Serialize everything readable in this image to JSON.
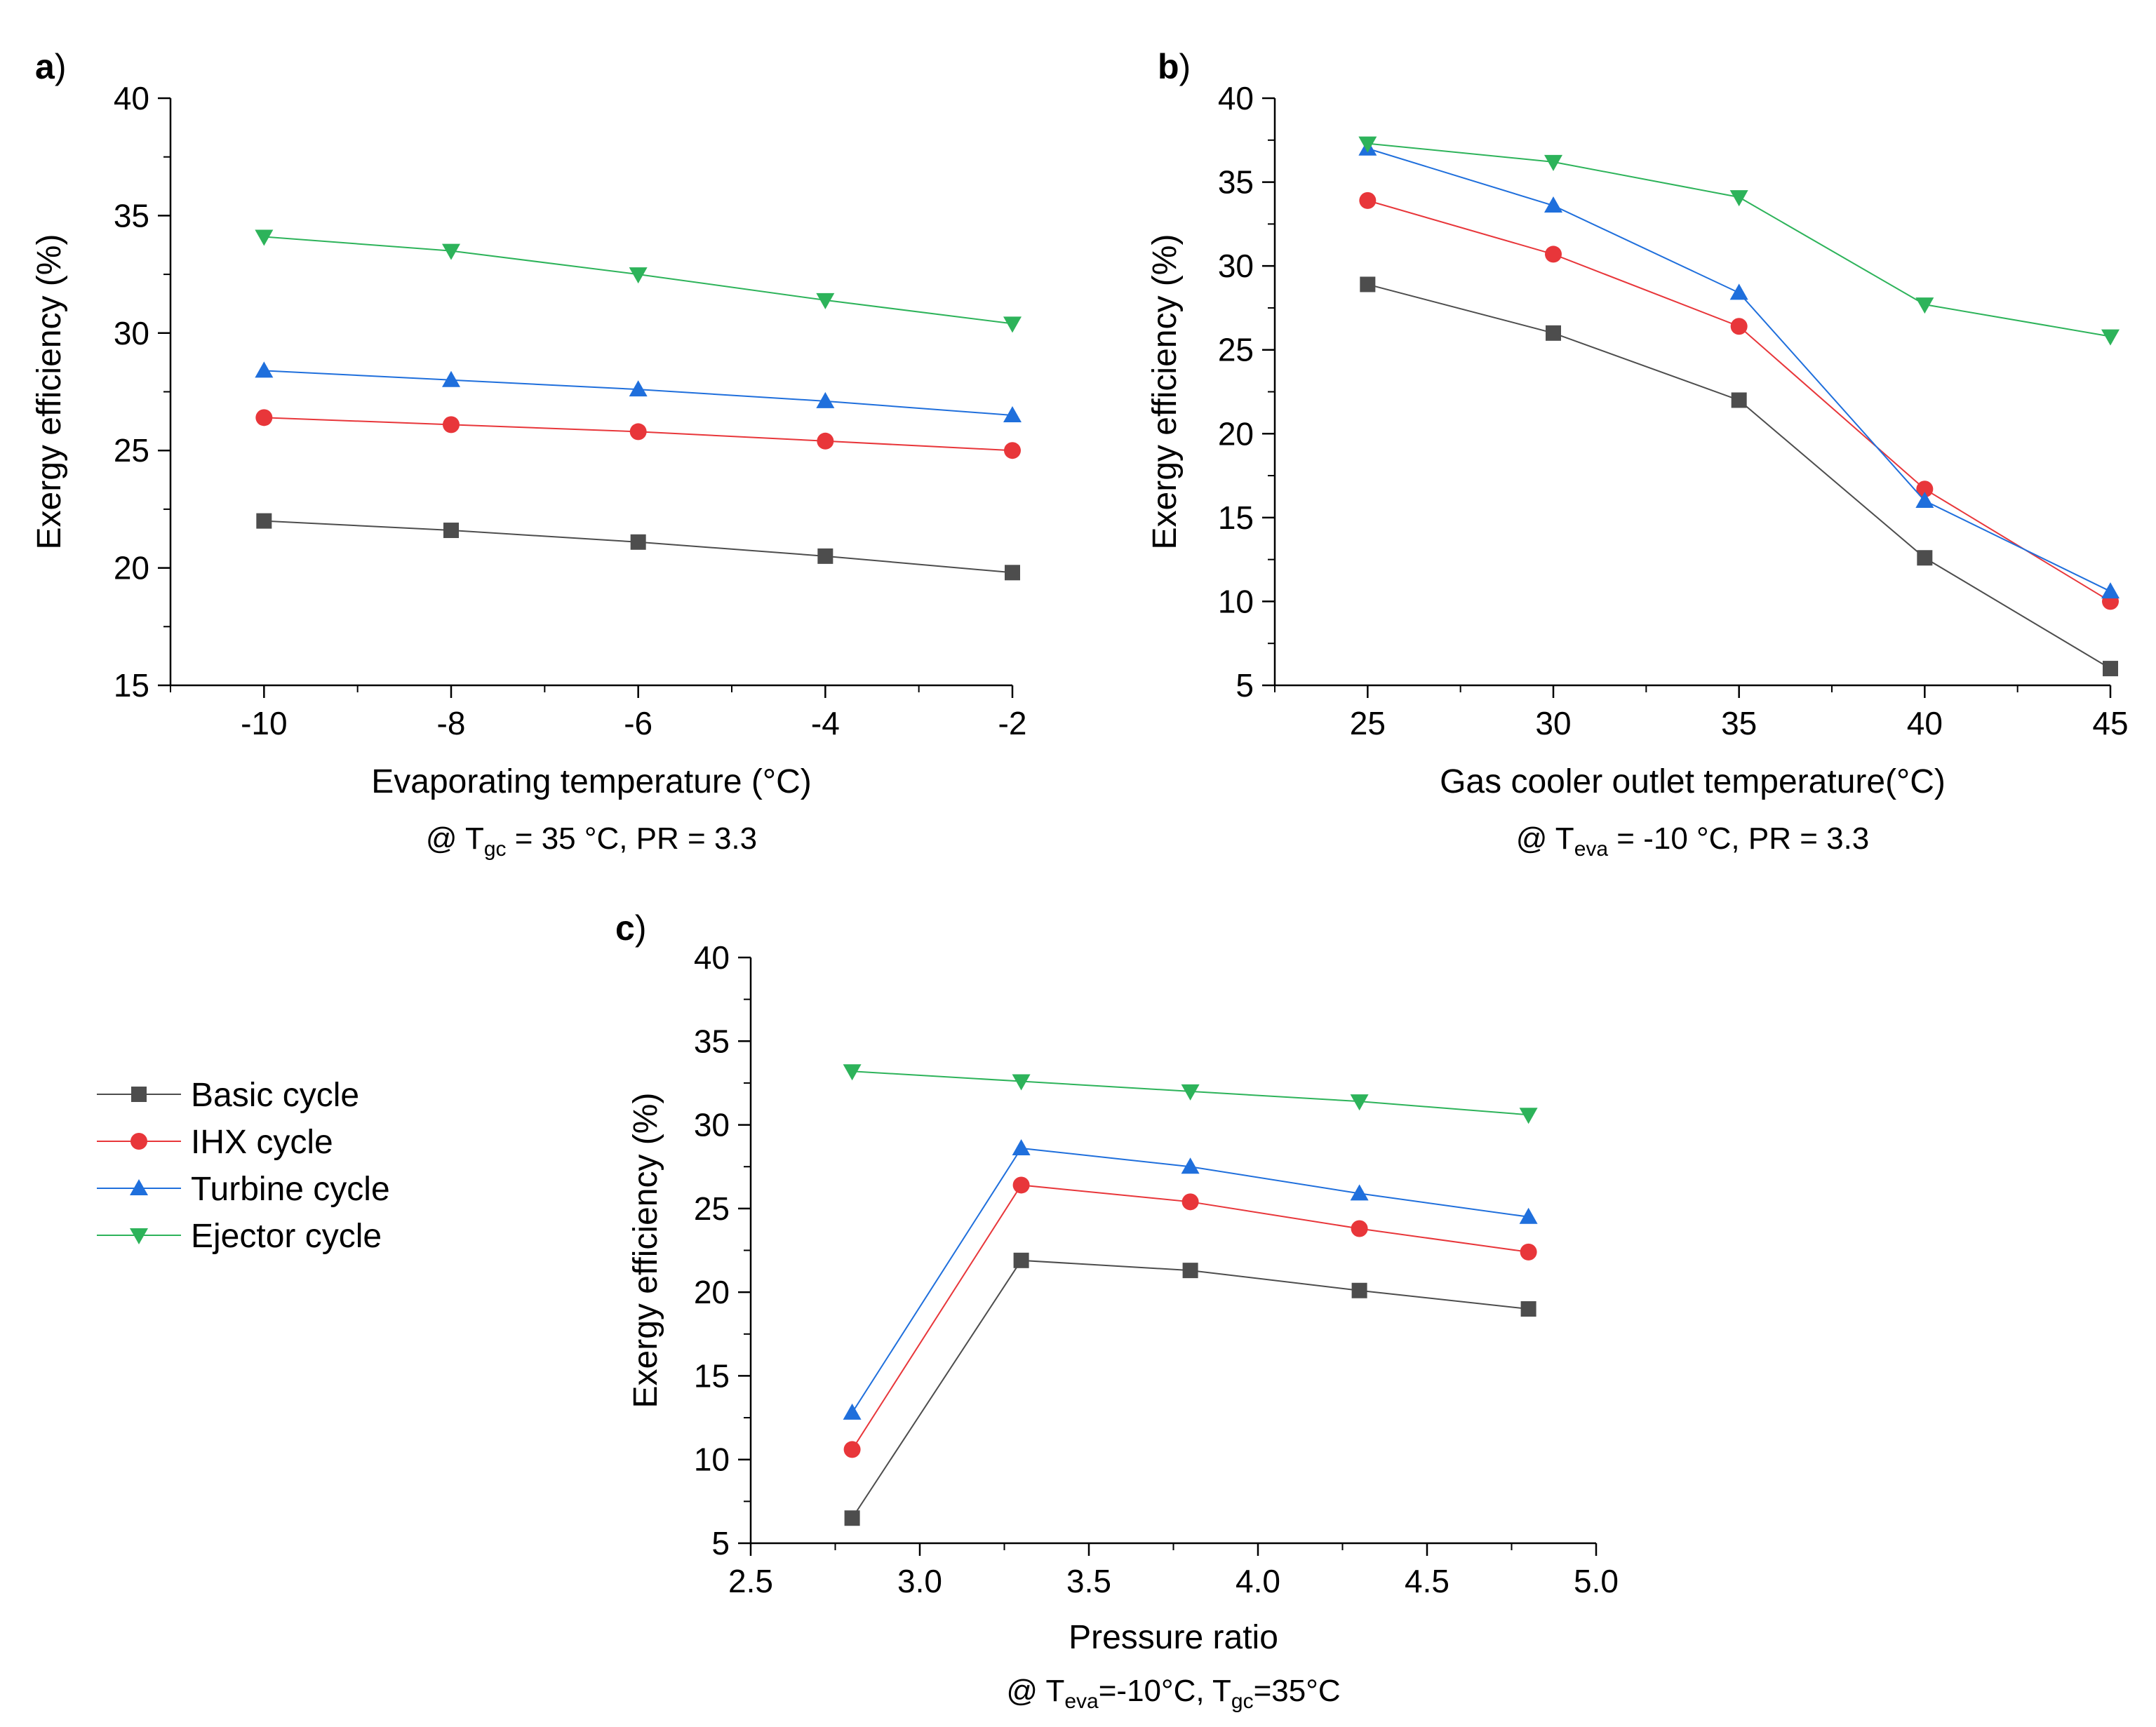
{
  "legend": {
    "entries": [
      {
        "name": "Basic cycle",
        "color": "#4d4d4d",
        "marker": "square"
      },
      {
        "name": "IHX cycle",
        "color": "#e8363a",
        "marker": "circle"
      },
      {
        "name": "Turbine cycle",
        "color": "#1f6fdc",
        "marker": "triangle-up"
      },
      {
        "name": "Ejector cycle",
        "color": "#2db35a",
        "marker": "triangle-down"
      }
    ]
  },
  "chart_data": [
    {
      "panel": "a",
      "panel_letter": "a",
      "type": "line",
      "title": "",
      "xlabel": "Evaporating temperature (°C)",
      "ylabel": "Exergy efficiency (%)",
      "condition": {
        "prefix": "@ T",
        "sub": "gc",
        "rest": " = 35 °C, PR = 3.3"
      },
      "xlim": [
        -11,
        -2
      ],
      "ylim": [
        15,
        40
      ],
      "xticks": [
        -10,
        -8,
        -6,
        -4,
        -2
      ],
      "xtick_labels": [
        "-10",
        "-8",
        "-6",
        "-4",
        "-2"
      ],
      "yticks": [
        15,
        20,
        25,
        30,
        35,
        40
      ],
      "ytick_labels": [
        "15",
        "20",
        "25",
        "30",
        "35",
        "40"
      ],
      "x": [
        -10,
        -8,
        -6,
        -4,
        -2
      ],
      "series": [
        {
          "name": "Basic cycle",
          "values": [
            22.0,
            21.6,
            21.1,
            20.5,
            19.8
          ]
        },
        {
          "name": "IHX cycle",
          "values": [
            26.4,
            26.1,
            25.8,
            25.4,
            25.0
          ]
        },
        {
          "name": "Turbine cycle",
          "values": [
            28.4,
            28.0,
            27.6,
            27.1,
            26.5
          ]
        },
        {
          "name": "Ejector cycle",
          "values": [
            34.1,
            33.5,
            32.5,
            31.4,
            30.4
          ]
        }
      ]
    },
    {
      "panel": "b",
      "panel_letter": "b",
      "type": "line",
      "title": "",
      "xlabel": "Gas cooler outlet temperature(°C)",
      "ylabel": "Exergy efficiency (%)",
      "condition": {
        "prefix": "@ T",
        "sub": "eva",
        "rest": " = -10 °C, PR = 3.3"
      },
      "xlim": [
        22.5,
        45
      ],
      "ylim": [
        5,
        40
      ],
      "xticks": [
        25,
        30,
        35,
        40,
        45
      ],
      "xtick_labels": [
        "25",
        "30",
        "35",
        "40",
        "45"
      ],
      "yticks": [
        5,
        10,
        15,
        20,
        25,
        30,
        35,
        40
      ],
      "ytick_labels": [
        "5",
        "10",
        "15",
        "20",
        "25",
        "30",
        "35",
        "40"
      ],
      "x": [
        25,
        30,
        35,
        40,
        45
      ],
      "series": [
        {
          "name": "Basic cycle",
          "values": [
            28.9,
            26.0,
            22.0,
            12.6,
            6.0
          ]
        },
        {
          "name": "IHX cycle",
          "values": [
            33.9,
            30.7,
            26.4,
            16.7,
            10.0
          ]
        },
        {
          "name": "Turbine cycle",
          "values": [
            37.0,
            33.6,
            28.4,
            16.0,
            10.6
          ]
        },
        {
          "name": "Ejector cycle",
          "values": [
            37.3,
            36.2,
            34.1,
            27.7,
            25.8
          ]
        }
      ]
    },
    {
      "panel": "c",
      "panel_letter": "c",
      "type": "line",
      "title": "",
      "xlabel": "Pressure ratio",
      "ylabel": "Exergy efficiency (%)",
      "condition": {
        "prefix": "@ T",
        "sub": "eva",
        "mid": "=-10°C, T",
        "sub2": "gc",
        "rest": "=35°C"
      },
      "xlim": [
        2.5,
        5.0
      ],
      "ylim": [
        5,
        40
      ],
      "xticks": [
        2.5,
        3.0,
        3.5,
        4.0,
        4.5,
        5.0
      ],
      "xtick_labels": [
        "2.5",
        "3.0",
        "3.5",
        "4.0",
        "4.5",
        "5.0"
      ],
      "yticks": [
        5,
        10,
        15,
        20,
        25,
        30,
        35,
        40
      ],
      "ytick_labels": [
        "5",
        "10",
        "15",
        "20",
        "25",
        "30",
        "35",
        "40"
      ],
      "x": [
        2.8,
        3.3,
        3.8,
        4.3,
        4.8
      ],
      "series": [
        {
          "name": "Basic cycle",
          "values": [
            6.5,
            21.9,
            21.3,
            20.1,
            19.0
          ]
        },
        {
          "name": "IHX cycle",
          "values": [
            10.6,
            26.4,
            25.4,
            23.8,
            22.4
          ]
        },
        {
          "name": "Turbine cycle",
          "values": [
            12.8,
            28.6,
            27.5,
            25.9,
            24.5
          ]
        },
        {
          "name": "Ejector cycle",
          "values": [
            33.2,
            32.6,
            32.0,
            31.4,
            30.6
          ]
        }
      ]
    }
  ]
}
